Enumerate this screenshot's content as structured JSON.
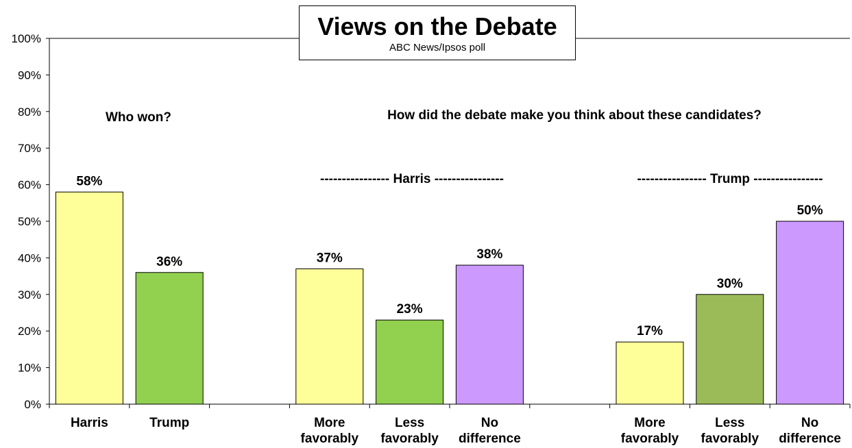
{
  "chart_data": {
    "type": "bar",
    "title": "Views on the Debate",
    "subtitle": "ABC News/Ipsos poll",
    "ylim": [
      0,
      100
    ],
    "yticks": [
      "0%",
      "10%",
      "20%",
      "30%",
      "40%",
      "50%",
      "60%",
      "70%",
      "80%",
      "90%",
      "100%"
    ],
    "annotations": {
      "who_won": "Who won?",
      "question": "How did the debate make you think about these candidates?",
      "harris_group": "---------------- Harris ----------------",
      "trump_group": "---------------- Trump ----------------"
    },
    "groups": [
      {
        "name": "Who won?",
        "bars": [
          {
            "label": "Harris",
            "value": 58,
            "value_label": "58%",
            "color": "#FFFF99"
          },
          {
            "label": "Trump",
            "value": 36,
            "value_label": "36%",
            "color": "#92D050"
          }
        ]
      },
      {
        "name": "Harris",
        "bars": [
          {
            "label": "More favorably",
            "value": 37,
            "value_label": "37%",
            "color": "#FFFF99"
          },
          {
            "label": "Less favorably",
            "value": 23,
            "value_label": "23%",
            "color": "#92D050"
          },
          {
            "label": "No difference",
            "value": 38,
            "value_label": "38%",
            "color": "#CC99FF"
          }
        ]
      },
      {
        "name": "Trump",
        "bars": [
          {
            "label": "More favorably",
            "value": 17,
            "value_label": "17%",
            "color": "#FFFF99"
          },
          {
            "label": "Less favorably",
            "value": 30,
            "value_label": "30%",
            "color": "#9BBB59"
          },
          {
            "label": "No difference",
            "value": 50,
            "value_label": "50%",
            "color": "#CC99FF"
          }
        ]
      }
    ]
  }
}
